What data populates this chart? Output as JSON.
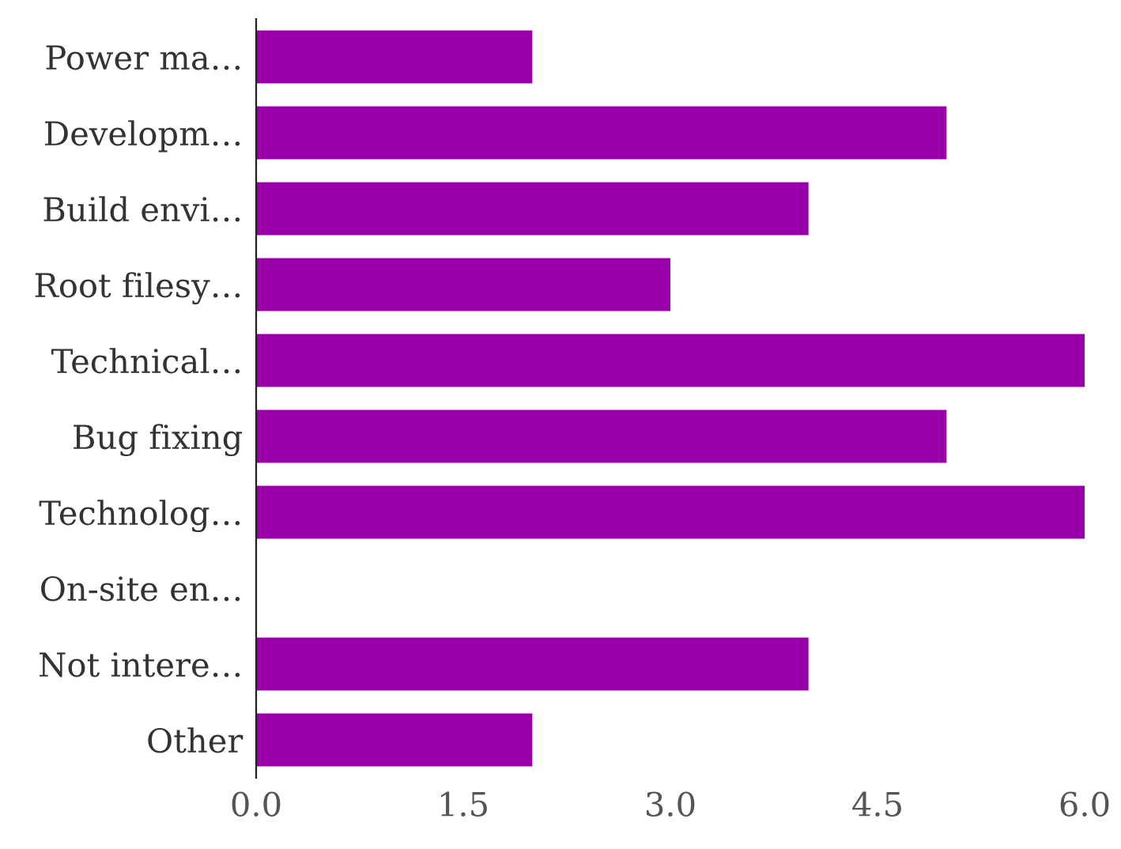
{
  "chart_data": {
    "type": "bar",
    "orientation": "horizontal",
    "categories": [
      "Power ma…",
      "Developm…",
      "Build envi…",
      "Root filesy…",
      "Technical…",
      "Bug fixing",
      "Technolog…",
      "On-site en…",
      "Not intere…",
      "Other"
    ],
    "values": [
      2,
      5,
      4,
      3,
      6,
      5,
      6,
      0,
      4,
      2
    ],
    "color": "#9900aa",
    "xlim": [
      0,
      6
    ],
    "xticks": [
      {
        "value": 0,
        "label": "0.0"
      },
      1.5,
      {
        "value": 3,
        "label": "3.0"
      },
      4.5,
      {
        "value": 6,
        "label": "6.0"
      }
    ],
    "grid": false,
    "legend": false
  }
}
